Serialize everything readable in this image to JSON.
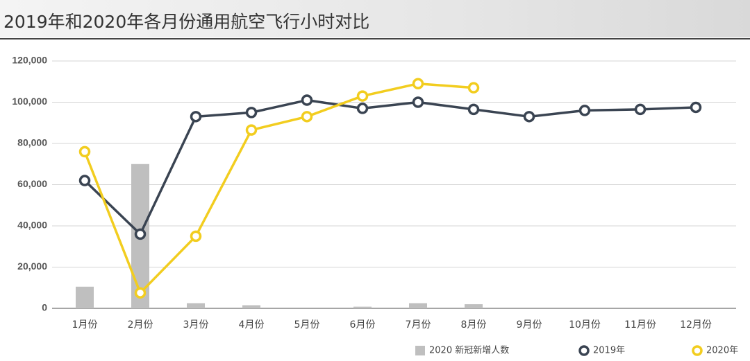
{
  "chart_data": {
    "type": "line",
    "title": "2019年和2020年各月份通用航空飞行小时对比",
    "categories": [
      "1月份",
      "2月份",
      "3月份",
      "4月份",
      "5月份",
      "6月份",
      "7月份",
      "8月份",
      "9月份",
      "10月份",
      "11月份",
      "12月份"
    ],
    "series": [
      {
        "name": "2020 新冠新增人数",
        "type": "bar",
        "color": "#bfbfbf",
        "values": [
          10500,
          70000,
          2500,
          1500,
          null,
          800,
          2500,
          2000,
          null,
          null,
          null,
          null
        ]
      },
      {
        "name": "2019年",
        "type": "line",
        "color": "#3a4452",
        "values": [
          62000,
          36000,
          93000,
          95000,
          101000,
          97000,
          100000,
          96500,
          93000,
          96000,
          96500,
          97500
        ]
      },
      {
        "name": "2020年",
        "type": "line",
        "color": "#f2cd1f",
        "values": [
          76000,
          7500,
          35000,
          86500,
          93000,
          103000,
          109000,
          107000,
          null,
          null,
          null,
          null
        ]
      }
    ],
    "ylim": [
      0,
      120000
    ],
    "yticks": [
      0,
      {
        "value": 20000,
        "label": "20,000"
      },
      {
        "value": 40000,
        "label": "40,000"
      },
      {
        "value": 60000,
        "label": "60,000"
      },
      {
        "value": 80000,
        "label": "80,000"
      },
      {
        "value": 100000,
        "label": "100,000"
      },
      {
        "value": 120000,
        "label": "120,000"
      }
    ],
    "grid": true,
    "legend": "bottom"
  }
}
